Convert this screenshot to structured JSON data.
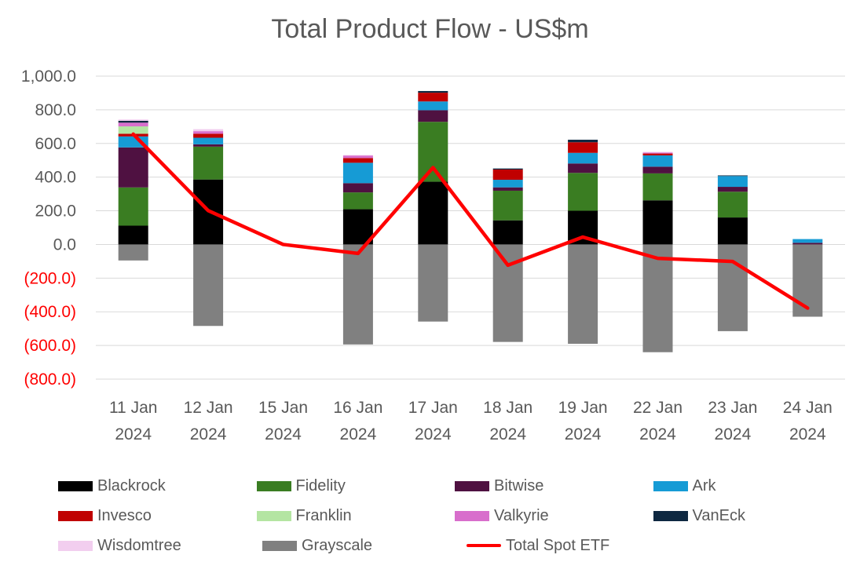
{
  "chart_data": {
    "type": "bar",
    "subtype": "stacked bar with line overlay",
    "title": "Total Product Flow - US$m",
    "categories": [
      [
        "11 Jan",
        "2024"
      ],
      [
        "12 Jan",
        "2024"
      ],
      [
        "15 Jan",
        "2024"
      ],
      [
        "16 Jan",
        "2024"
      ],
      [
        "17 Jan",
        "2024"
      ],
      [
        "18 Jan",
        "2024"
      ],
      [
        "19 Jan",
        "2024"
      ],
      [
        "22 Jan",
        "2024"
      ],
      [
        "23 Jan",
        "2024"
      ],
      [
        "24 Jan",
        "2024"
      ]
    ],
    "ylim": [
      -800,
      1000
    ],
    "yticks": [
      {
        "value": 1000,
        "label": "1,000.0"
      },
      {
        "value": 800,
        "label": "800.0"
      },
      {
        "value": 600,
        "label": "600.0"
      },
      {
        "value": 400,
        "label": "400.0"
      },
      {
        "value": 200,
        "label": "200.0"
      },
      {
        "value": 0,
        "label": "0.0"
      },
      {
        "value": -200,
        "label": "(200.0)"
      },
      {
        "value": -400,
        "label": "(400.0)"
      },
      {
        "value": -600,
        "label": "(600.0)"
      },
      {
        "value": -800,
        "label": "(800.0)"
      }
    ],
    "positive_tick_color": "#595959",
    "negative_tick_color": "#ff0000",
    "grid": true,
    "legend_position": "bottom",
    "series": [
      {
        "name": "Blackrock",
        "color": "#000000",
        "values": [
          111.7,
          386.0,
          0,
          209.3,
          372.6,
          143.3,
          200.2,
          262.2,
          160.3,
          0
        ]
      },
      {
        "name": "Fidelity",
        "color": "#3a7d22",
        "values": [
          227.0,
          195.0,
          0,
          100.0,
          356.0,
          176.0,
          225.0,
          160.0,
          153.0,
          0
        ]
      },
      {
        "name": "Bitwise",
        "color": "#4f1141",
        "values": [
          238.0,
          14.0,
          0,
          55.0,
          69.0,
          20.0,
          56.0,
          40.0,
          29.0,
          10.0
        ]
      },
      {
        "name": "Ark",
        "color": "#169bd5",
        "values": [
          65.0,
          39.0,
          0,
          121.0,
          52.0,
          45.0,
          63.0,
          67.0,
          64.0,
          22.0
        ]
      },
      {
        "name": "Invesco",
        "color": "#c00000",
        "values": [
          16.0,
          24.0,
          0,
          28.0,
          52.0,
          61.0,
          63.0,
          11.0,
          0,
          0
        ]
      },
      {
        "name": "Franklin",
        "color": "#b4e5a2",
        "values": [
          44.0,
          0,
          0,
          0,
          0,
          0,
          0,
          0,
          0,
          0
        ]
      },
      {
        "name": "Valkyrie",
        "color": "#d86ecc",
        "values": [
          22.0,
          15.0,
          0,
          15.0,
          0,
          0,
          0,
          6.0,
          0,
          0
        ]
      },
      {
        "name": "VanEck",
        "color": "#0e2841",
        "values": [
          11.0,
          0,
          0,
          0,
          10.0,
          6.0,
          15.0,
          0,
          4.0,
          0
        ]
      },
      {
        "name": "Wisdomtree",
        "color": "#f2ceef",
        "values": [
          8.0,
          12.0,
          0,
          3.0,
          0,
          0,
          0,
          4.0,
          0,
          0
        ]
      },
      {
        "name": "Grayscale",
        "color": "#808080",
        "values": [
          -95.1,
          -484.1,
          0,
          -594.1,
          -458.1,
          -579.1,
          -590.1,
          -640.1,
          -515.1,
          -429.3
        ]
      }
    ],
    "line_series": {
      "name": "Total Spot ETF",
      "color": "#ff0000",
      "values": [
        655.3,
        200.9,
        0.0,
        -53.3,
        456.5,
        -123.3,
        43.9,
        -82.4,
        -101.3,
        -378.0
      ]
    }
  }
}
